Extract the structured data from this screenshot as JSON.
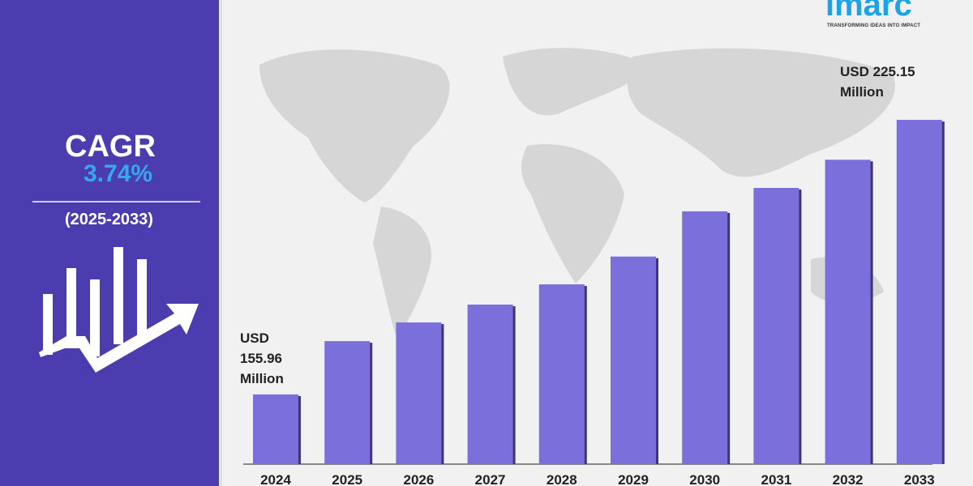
{
  "left_panel": {
    "cagr_label": "CAGR",
    "cagr_value": "3.74%",
    "period": "(2025-2033)",
    "icon": "bar-chart-growth-arrow-icon",
    "background": "#4b3db0",
    "accent": "#36a8ee"
  },
  "logo": {
    "name": "imarc",
    "tagline": "TRANSFORMING IDEAS INTO IMPACT",
    "color": "#1aa3e8"
  },
  "chart_data": {
    "type": "bar",
    "categories": [
      "2024",
      "2025",
      "2026",
      "2027",
      "2028",
      "2029",
      "2030",
      "2031",
      "2032",
      "2033"
    ],
    "values": [
      155.96,
      169.4,
      174.1,
      178.6,
      183.7,
      190.7,
      202.1,
      208.0,
      215.1,
      225.15
    ],
    "unit": "USD Million",
    "annotations": {
      "first": {
        "line1": "USD",
        "line2": "155.96",
        "line3": "Million"
      },
      "last": {
        "line1": "USD 225.15",
        "line2": "Million"
      }
    },
    "bar_color": "#7b6fdc",
    "grid": false,
    "legend": "none"
  }
}
